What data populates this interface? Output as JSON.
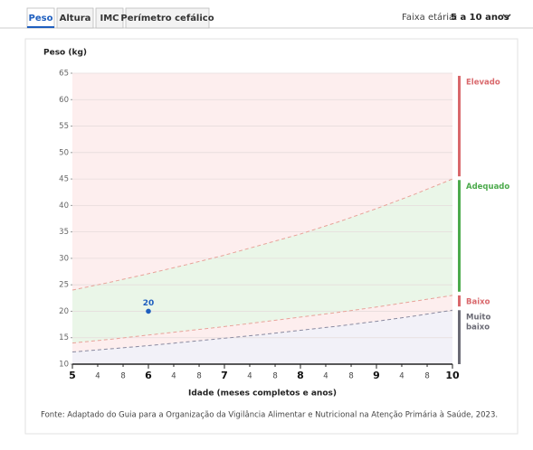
{
  "tabs": [
    "Peso",
    "Altura",
    "IMC",
    "Perímetro cefálico"
  ],
  "age_range": {
    "label": "Faixa etária:",
    "value": "5 a 10 anos"
  },
  "source": "Fonte: Adaptado do Guia para a Organização da Vigilância Alimentar e Nutricional na Atenção Primária à Saúde, 2023.",
  "chart_data": {
    "type": "line",
    "y_label": "Peso (kg)",
    "x_label": "Idade (meses completos e anos)",
    "xlim": [
      5,
      10
    ],
    "ylim": [
      10,
      65
    ],
    "yticks": [
      10,
      15,
      20,
      25,
      30,
      35,
      40,
      45,
      50,
      55,
      60,
      65
    ],
    "xticks": [
      5,
      {
        "value": 5.333,
        "label": "4"
      },
      {
        "value": 5.667,
        "label": "8"
      },
      6,
      {
        "value": 6.333,
        "label": "4"
      },
      {
        "value": 6.667,
        "label": "8"
      },
      7,
      {
        "value": 7.333,
        "label": "4"
      },
      {
        "value": 7.667,
        "label": "8"
      },
      8,
      {
        "value": 8.333,
        "label": "4"
      },
      {
        "value": 8.667,
        "label": "8"
      },
      9,
      {
        "value": 9.333,
        "label": "4"
      },
      {
        "value": 9.667,
        "label": "8"
      },
      10
    ],
    "grid": true,
    "area_colors": [
      "#fdeeee",
      "#eaf6e8",
      "#fdeeee",
      "#f2f1f8"
    ],
    "x": [
      5,
      5.5,
      6,
      6.5,
      7,
      7.5,
      8,
      8.5,
      9,
      9.5,
      10
    ],
    "series": [
      {
        "color": "#e8a39a",
        "values": [
          24,
          25.5,
          27.1,
          28.8,
          30.6,
          32.6,
          34.6,
          36.9,
          39.4,
          42.1,
          45
        ]
      },
      {
        "color": "#e8a39a",
        "values": [
          14,
          14.7,
          15.5,
          16.3,
          17.1,
          18,
          18.9,
          19.8,
          20.8,
          21.9,
          23
        ]
      },
      {
        "color": "#8a8aa0",
        "values": [
          12.3,
          12.9,
          13.5,
          14.2,
          14.9,
          15.6,
          16.4,
          17.2,
          18.1,
          19.1,
          20.2
        ]
      }
    ],
    "points": {
      "x": [
        6
      ],
      "values": [
        20
      ],
      "color": "#1f5fbf"
    },
    "zones": [
      {
        "name": "Elevado",
        "color": "#d9686c",
        "range": [
          45.5,
          64.5
        ]
      },
      {
        "name": "Adequado",
        "color": "#4caa4c",
        "range": [
          23.7,
          44.8
        ]
      },
      {
        "name": "Baixo",
        "color": "#d9686c",
        "range": [
          20.9,
          23
        ]
      },
      {
        "name": "Muito baixo",
        "color": "#6b6b75",
        "range": [
          10,
          20.2
        ]
      }
    ]
  }
}
